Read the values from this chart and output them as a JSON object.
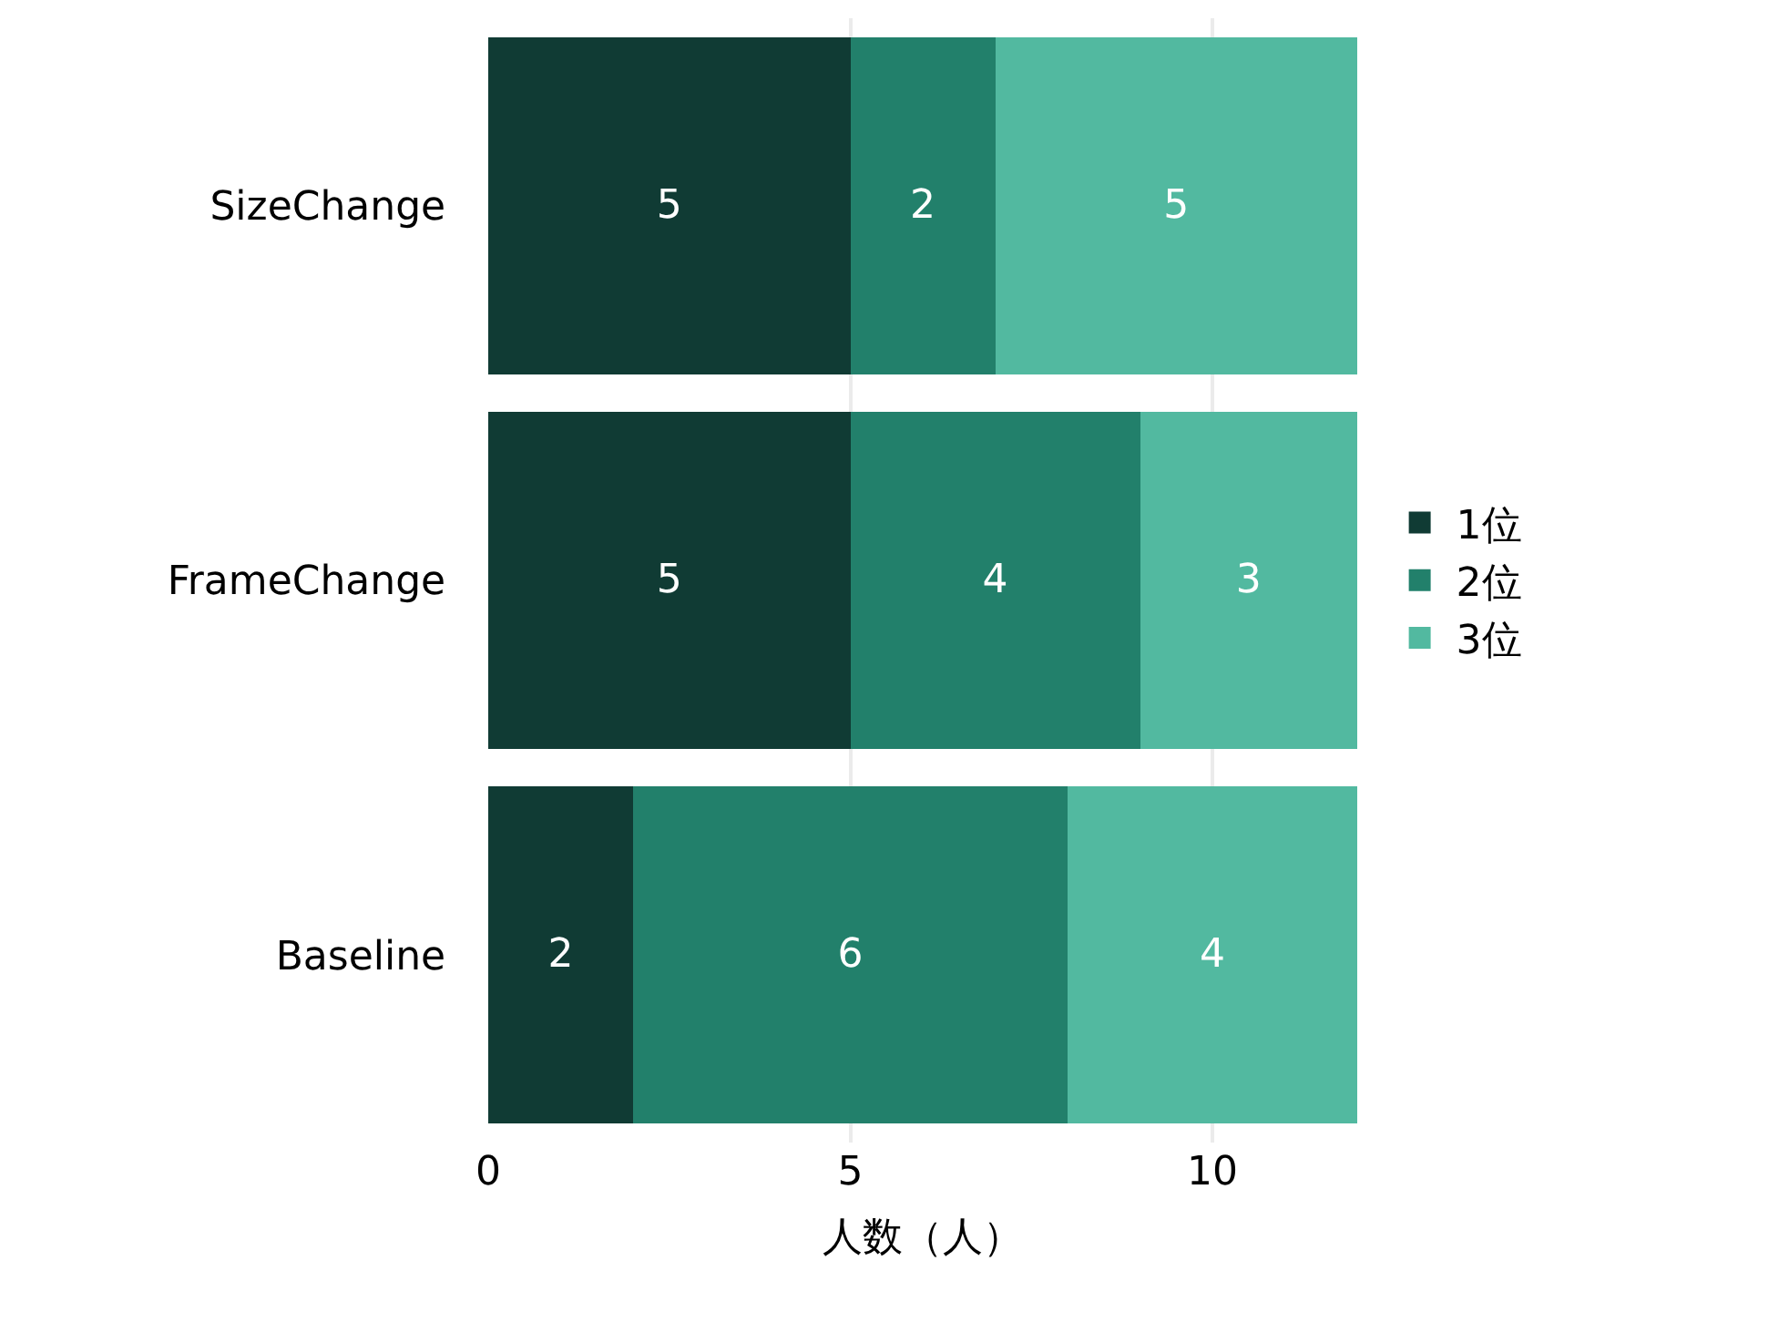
{
  "chart_data": {
    "type": "bar",
    "orientation": "horizontal",
    "stacked": true,
    "xlabel": "人数（人）",
    "categories": [
      "SizeChange",
      "FrameChange",
      "Baseline"
    ],
    "series": [
      {
        "name": "1位",
        "color": "#103b34",
        "values": [
          5,
          5,
          2
        ]
      },
      {
        "name": "2位",
        "color": "#22806b",
        "values": [
          2,
          4,
          6
        ]
      },
      {
        "name": "3位",
        "color": "#52b9a0",
        "values": [
          5,
          3,
          4
        ]
      }
    ],
    "xlim": [
      0,
      12
    ],
    "xticks": [
      0,
      5,
      10
    ],
    "grid": "x",
    "legend": "right",
    "data_labels": true
  }
}
